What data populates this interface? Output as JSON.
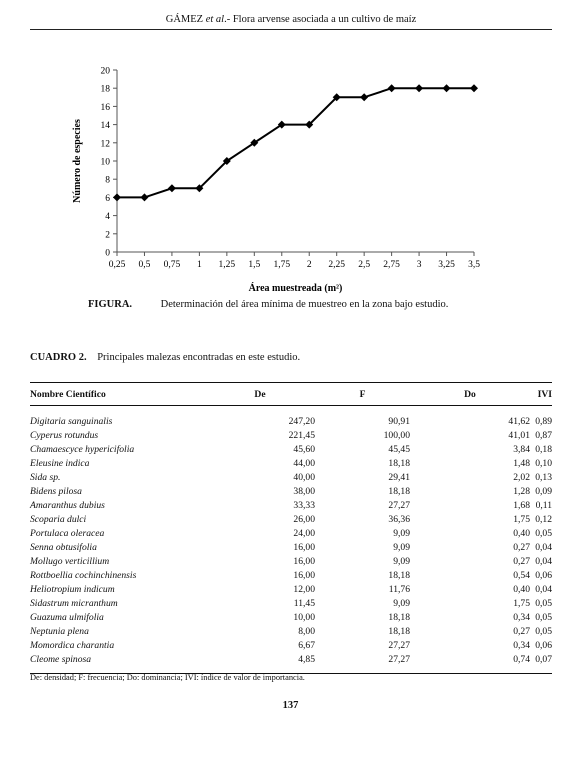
{
  "header": {
    "author": "GÁMEZ",
    "etal": "et al",
    "title": ".- Flora arvense asociada a un cultivo de maíz"
  },
  "figure": {
    "label": "FIGURA.",
    "caption": "Determinación del área mínima de muestreo en la zona bajo estudio."
  },
  "chart_data": {
    "type": "line",
    "xlabel": "Área muestreada (m²)",
    "ylabel": "Número de especies",
    "x_ticks": [
      "0,25",
      "0,5",
      "0,75",
      "1",
      "1,25",
      "1,5",
      "1,75",
      "2",
      "2,25",
      "2,5",
      "2,75",
      "3",
      "3,25",
      "3,5"
    ],
    "y_ticks": [
      "0",
      "2",
      "4",
      "6",
      "8",
      "10",
      "12",
      "14",
      "16",
      "18",
      "20"
    ],
    "xlim": [
      0.25,
      3.5
    ],
    "ylim": [
      0,
      20
    ],
    "x": [
      0.25,
      0.5,
      0.75,
      1,
      1.25,
      1.5,
      1.75,
      2,
      2.25,
      2.5,
      2.75,
      3,
      3.25,
      3.5
    ],
    "values": [
      6,
      6,
      7,
      7,
      10,
      12,
      14,
      14,
      17,
      17,
      18,
      18,
      18,
      18
    ],
    "grid": false,
    "marker": "diamond",
    "color": "#000000"
  },
  "table": {
    "label": "CUADRO 2.",
    "title": "Principales malezas encontradas en este estudio.",
    "columns": [
      "Nombre Científico",
      "De",
      "F",
      "Do",
      "IVI"
    ],
    "rows": [
      [
        "Digitaria sanguinalis",
        "247,20",
        "90,91",
        "41,62",
        "0,89"
      ],
      [
        "Cyperus rotundus",
        "221,45",
        "100,00",
        "41,01",
        "0,87"
      ],
      [
        "Chamaescyce hypericifolia",
        "45,60",
        "45,45",
        "3,84",
        "0,18"
      ],
      [
        "Eleusine indica",
        "44,00",
        "18,18",
        "1,48",
        "0,10"
      ],
      [
        "Sida sp.",
        "40,00",
        "29,41",
        "2,02",
        "0,13"
      ],
      [
        "Bidens pilosa",
        "38,00",
        "18,18",
        "1,28",
        "0,09"
      ],
      [
        "Amaranthus dubius",
        "33,33",
        "27,27",
        "1,68",
        "0,11"
      ],
      [
        "Scoparia dulci",
        "26,00",
        "36,36",
        "1,75",
        "0,12"
      ],
      [
        "Portulaca oleracea",
        "24,00",
        "9,09",
        "0,40",
        "0,05"
      ],
      [
        "Senna obtusifolia",
        "16,00",
        "9,09",
        "0,27",
        "0,04"
      ],
      [
        "Mollugo verticillium",
        "16,00",
        "9,09",
        "0,27",
        "0,04"
      ],
      [
        "Rottboellia cochinchinensis",
        "16,00",
        "18,18",
        "0,54",
        "0,06"
      ],
      [
        "Heliotropium indicum",
        "12,00",
        "11,76",
        "0,40",
        "0,04"
      ],
      [
        "Sidastrum micranthum",
        "11,45",
        "9,09",
        "1,75",
        "0,05"
      ],
      [
        "Guazuma ulmifolia",
        "10,00",
        "18,18",
        "0,34",
        "0,05"
      ],
      [
        "Neptunia plena",
        "8,00",
        "18,18",
        "0,27",
        "0,05"
      ],
      [
        "Momordica charantia",
        "6,67",
        "27,27",
        "0,34",
        "0,06"
      ],
      [
        "Cleome spinosa",
        "4,85",
        "27,27",
        "0,74",
        "0,07"
      ]
    ],
    "footnote": "De: densidad; F: frecuencia; Do: dominancia; IVI: índice de valor de importancia."
  },
  "page_number": "137"
}
